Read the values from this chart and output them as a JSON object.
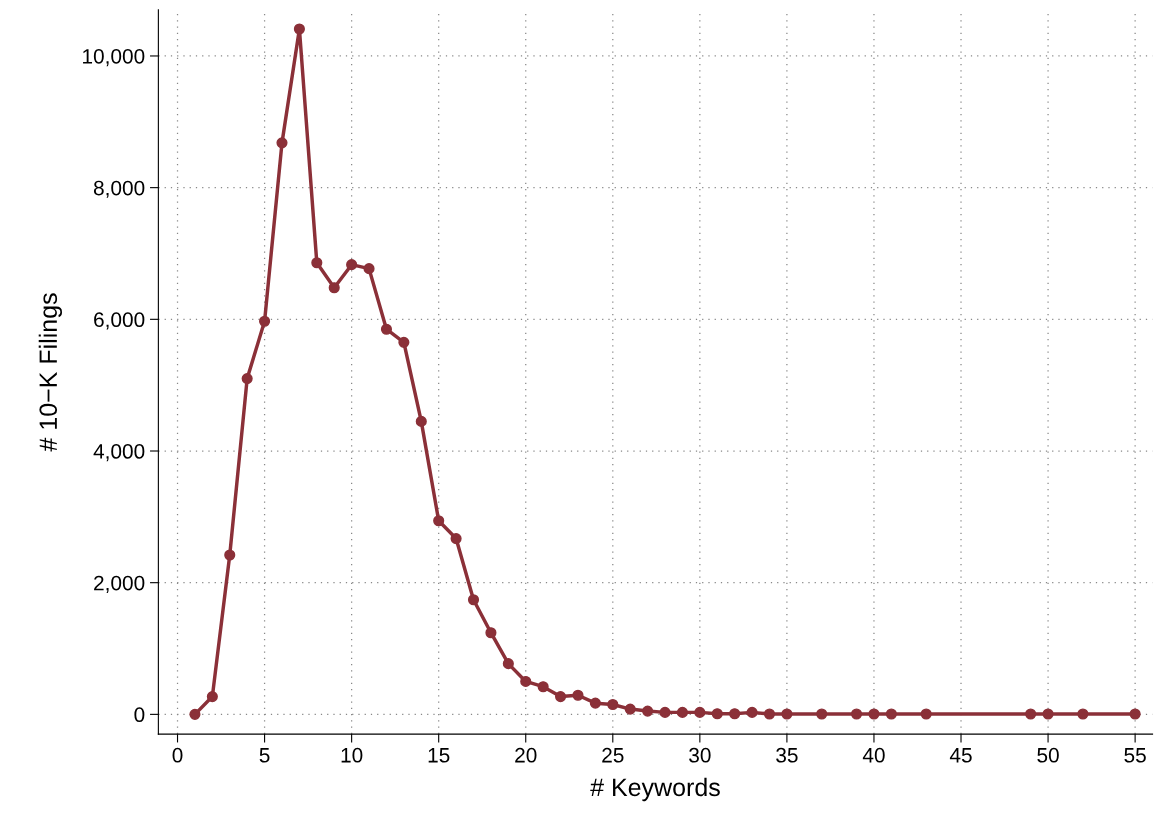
{
  "chart_data": {
    "type": "line",
    "xlabel": "# Keywords",
    "ylabel": "# 10−K Filings",
    "x": [
      1,
      2,
      3,
      4,
      5,
      6,
      7,
      8,
      9,
      10,
      11,
      12,
      13,
      14,
      15,
      16,
      17,
      18,
      19,
      20,
      21,
      22,
      23,
      24,
      25,
      26,
      27,
      28,
      29,
      30,
      31,
      32,
      33,
      34,
      35,
      37,
      39,
      40,
      41,
      43,
      49,
      50,
      52,
      55
    ],
    "series": [
      {
        "color": "#8b3038",
        "values": [
          0,
          270,
          2420,
          5100,
          5970,
          8680,
          10410,
          6860,
          6480,
          6830,
          6770,
          5850,
          5650,
          4450,
          2940,
          2670,
          1740,
          1240,
          770,
          500,
          420,
          270,
          290,
          170,
          150,
          80,
          50,
          30,
          30,
          30,
          10,
          10,
          30,
          5,
          5,
          5,
          5,
          5,
          5,
          5,
          5,
          5,
          5,
          5
        ]
      }
    ],
    "xlim": [
      -1.1,
      56
    ],
    "xticks": [
      0,
      5,
      10,
      15,
      20,
      25,
      30,
      35,
      40,
      45,
      50,
      55
    ],
    "ylim": [
      -300,
      10700
    ],
    "yticks": [
      {
        "value": 0,
        "label": "0"
      },
      {
        "value": 2000,
        "label": "2,000"
      },
      {
        "value": 4000,
        "label": "4,000"
      },
      {
        "value": 6000,
        "label": "6,000"
      },
      {
        "value": 8000,
        "label": "8,000"
      },
      {
        "value": 10000,
        "label": "10,000"
      }
    ],
    "grid": true,
    "marker": "circle",
    "line_style": "solid",
    "legend": false
  }
}
